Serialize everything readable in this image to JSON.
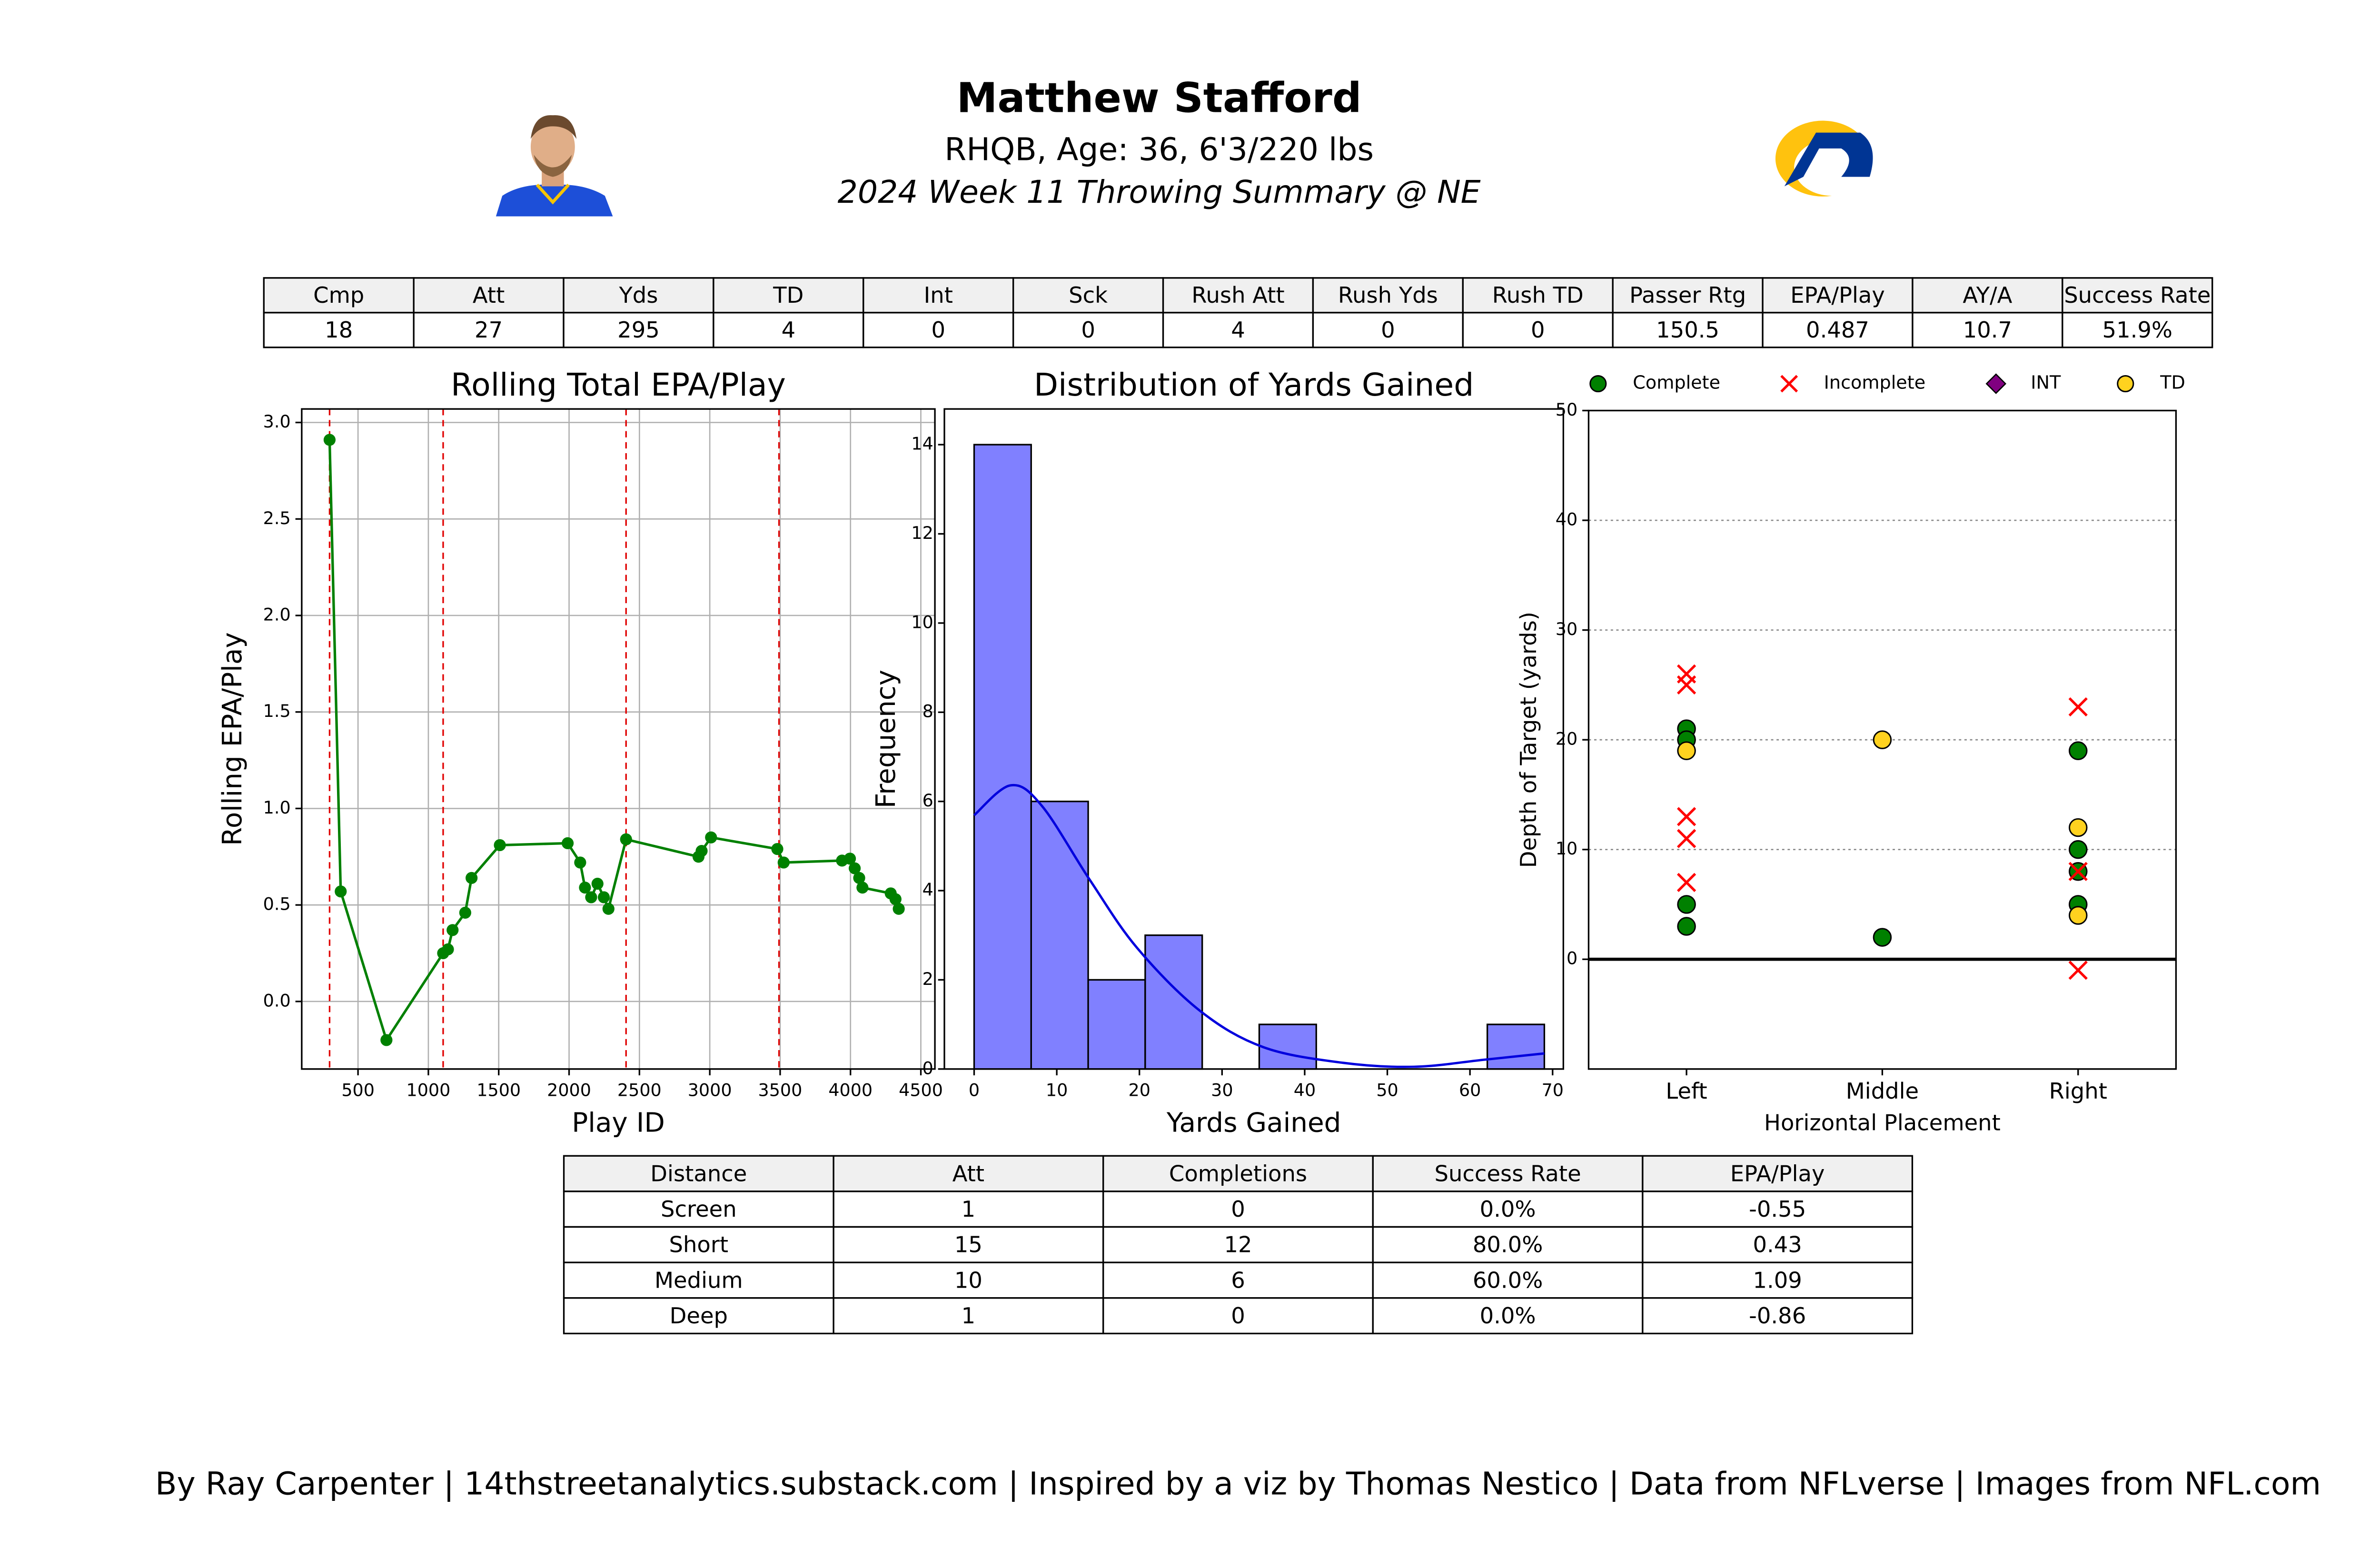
{
  "header": {
    "title": "Matthew Stafford",
    "subtitle": "RHQB, Age: 36, 6'3/220 lbs",
    "game": "2024 Week 11 Throwing Summary @ NE"
  },
  "stats_table": {
    "header": [
      "Cmp",
      "Att",
      "Yds",
      "TD",
      "Int",
      "Sck",
      "Rush Att",
      "Rush Yds",
      "Rush TD",
      "Passer Rtg",
      "EPA/Play",
      "AY/A",
      "Success Rate"
    ],
    "rows": [
      [
        "18",
        "27",
        "295",
        "4",
        "0",
        "0",
        "4",
        "0",
        "0",
        "150.5",
        "0.487",
        "10.7",
        "51.9%"
      ]
    ]
  },
  "chart_data": [
    {
      "type": "line",
      "title": "Rolling Total EPA/Play",
      "x_label": "Play ID",
      "y_label": "Rolling EPA/Play",
      "color": "#008000",
      "vline_color": "#e00000",
      "grid": true,
      "x": [
        298,
        377,
        702,
        1105,
        1139,
        1172,
        1262,
        1307,
        1508,
        1990,
        2079,
        2113,
        2157,
        2202,
        2247,
        2280,
        2405,
        2920,
        2942,
        3009,
        3480,
        3525,
        3940,
        3996,
        4030,
        4062,
        4085,
        4286,
        4320,
        4343
      ],
      "values": [
        2.91,
        0.57,
        -0.2,
        0.25,
        0.27,
        0.37,
        0.46,
        0.64,
        0.81,
        0.82,
        0.72,
        0.59,
        0.54,
        0.61,
        0.54,
        0.48,
        0.84,
        0.75,
        0.78,
        0.85,
        0.79,
        0.72,
        0.73,
        0.74,
        0.69,
        0.64,
        0.59,
        0.56,
        0.53,
        0.48
      ],
      "vlines": [
        298,
        1105,
        2405,
        3492
      ],
      "xlim": [
        100,
        4600
      ],
      "xticks": [
        500,
        1000,
        1500,
        2000,
        2500,
        3000,
        3500,
        4000,
        4500
      ],
      "ylim": [
        -0.35,
        3.07
      ],
      "yticks": [
        {
          "value": 0,
          "label": "0.0"
        },
        0.5,
        {
          "value": 1,
          "label": "1.0"
        },
        1.5,
        {
          "value": 2,
          "label": "2.0"
        },
        2.5,
        {
          "value": 3,
          "label": "3.0"
        }
      ]
    },
    {
      "type": "histogram",
      "title": "Distribution of Yards Gained",
      "x_label": "Yards Gained",
      "y_label": "Frequency",
      "color": "#8080ff",
      "kde_color": "#0000dd",
      "bins": [
        0,
        6.9,
        13.8,
        20.7,
        27.6,
        34.5,
        41.4,
        48.3,
        55.2,
        62.1,
        69
      ],
      "counts": [
        14,
        6,
        2,
        3,
        0,
        1,
        0,
        0,
        0,
        1
      ],
      "kde": {
        "x": [
          0,
          4.4,
          8.2,
          14,
          19.7,
          27.3,
          35,
          44.6,
          53.2,
          61.8,
          69
        ],
        "values": [
          5.69,
          6.36,
          5.9,
          4.24,
          2.72,
          1.31,
          0.49,
          0.14,
          0.05,
          0.21,
          0.35
        ]
      },
      "xlim": [
        -3.6,
        71.3
      ],
      "xticks": [
        0,
        10,
        20,
        30,
        40,
        50,
        60,
        70
      ],
      "ylim": [
        0,
        14.8
      ],
      "yticks": [
        0,
        2,
        4,
        6,
        8,
        10,
        12,
        14
      ]
    },
    {
      "type": "scatter",
      "x_label": "Horizontal Placement",
      "y_label": "Depth of Target (yards)",
      "grid": true,
      "hline": 0,
      "categories": [
        "Left",
        "Middle",
        "Right"
      ],
      "series": [
        {
          "name": "Complete",
          "color": "#008000",
          "marker": "circle",
          "x": [
            "Left",
            "Left",
            "Left",
            "Left",
            "Middle",
            "Right",
            "Right",
            "Right",
            "Right"
          ],
          "values": [
            21,
            20,
            5,
            3,
            2,
            19,
            10,
            8,
            5
          ]
        },
        {
          "name": "Incomplete",
          "color": "#ff0000",
          "marker": "x",
          "x": [
            "Left",
            "Left",
            "Left",
            "Left",
            "Left",
            "Right",
            "Right",
            "Right"
          ],
          "values": [
            26,
            25,
            13,
            11,
            7,
            23,
            8,
            -1
          ]
        },
        {
          "name": "INT",
          "color": "#800080",
          "marker": "diamond",
          "x": [],
          "values": []
        },
        {
          "name": "TD",
          "color": "#ffd21f",
          "marker": "circle",
          "x": [
            "Left",
            "Middle",
            "Right",
            "Right"
          ],
          "values": [
            19,
            20,
            12,
            4
          ]
        }
      ],
      "xlim": [
        -0.5,
        2.5
      ],
      "ylim": [
        -10,
        50
      ],
      "yticks": [
        0,
        10,
        20,
        30,
        40,
        50
      ]
    }
  ],
  "depth_table": {
    "header": [
      "Distance",
      "Att",
      "Completions",
      "Success Rate",
      "EPA/Play"
    ],
    "rows": [
      [
        "Screen",
        "1",
        "0",
        "0.0%",
        "-0.55"
      ],
      [
        "Short",
        "15",
        "12",
        "80.0%",
        "0.43"
      ],
      [
        "Medium",
        "10",
        "6",
        "60.0%",
        "1.09"
      ],
      [
        "Deep",
        "1",
        "0",
        "0.0%",
        "-0.86"
      ]
    ]
  },
  "footer": "By Ray Carpenter | 14thstreetanalytics.substack.com | Inspired by a viz by Thomas Nestico | Data from NFLverse | Images from NFL.com"
}
